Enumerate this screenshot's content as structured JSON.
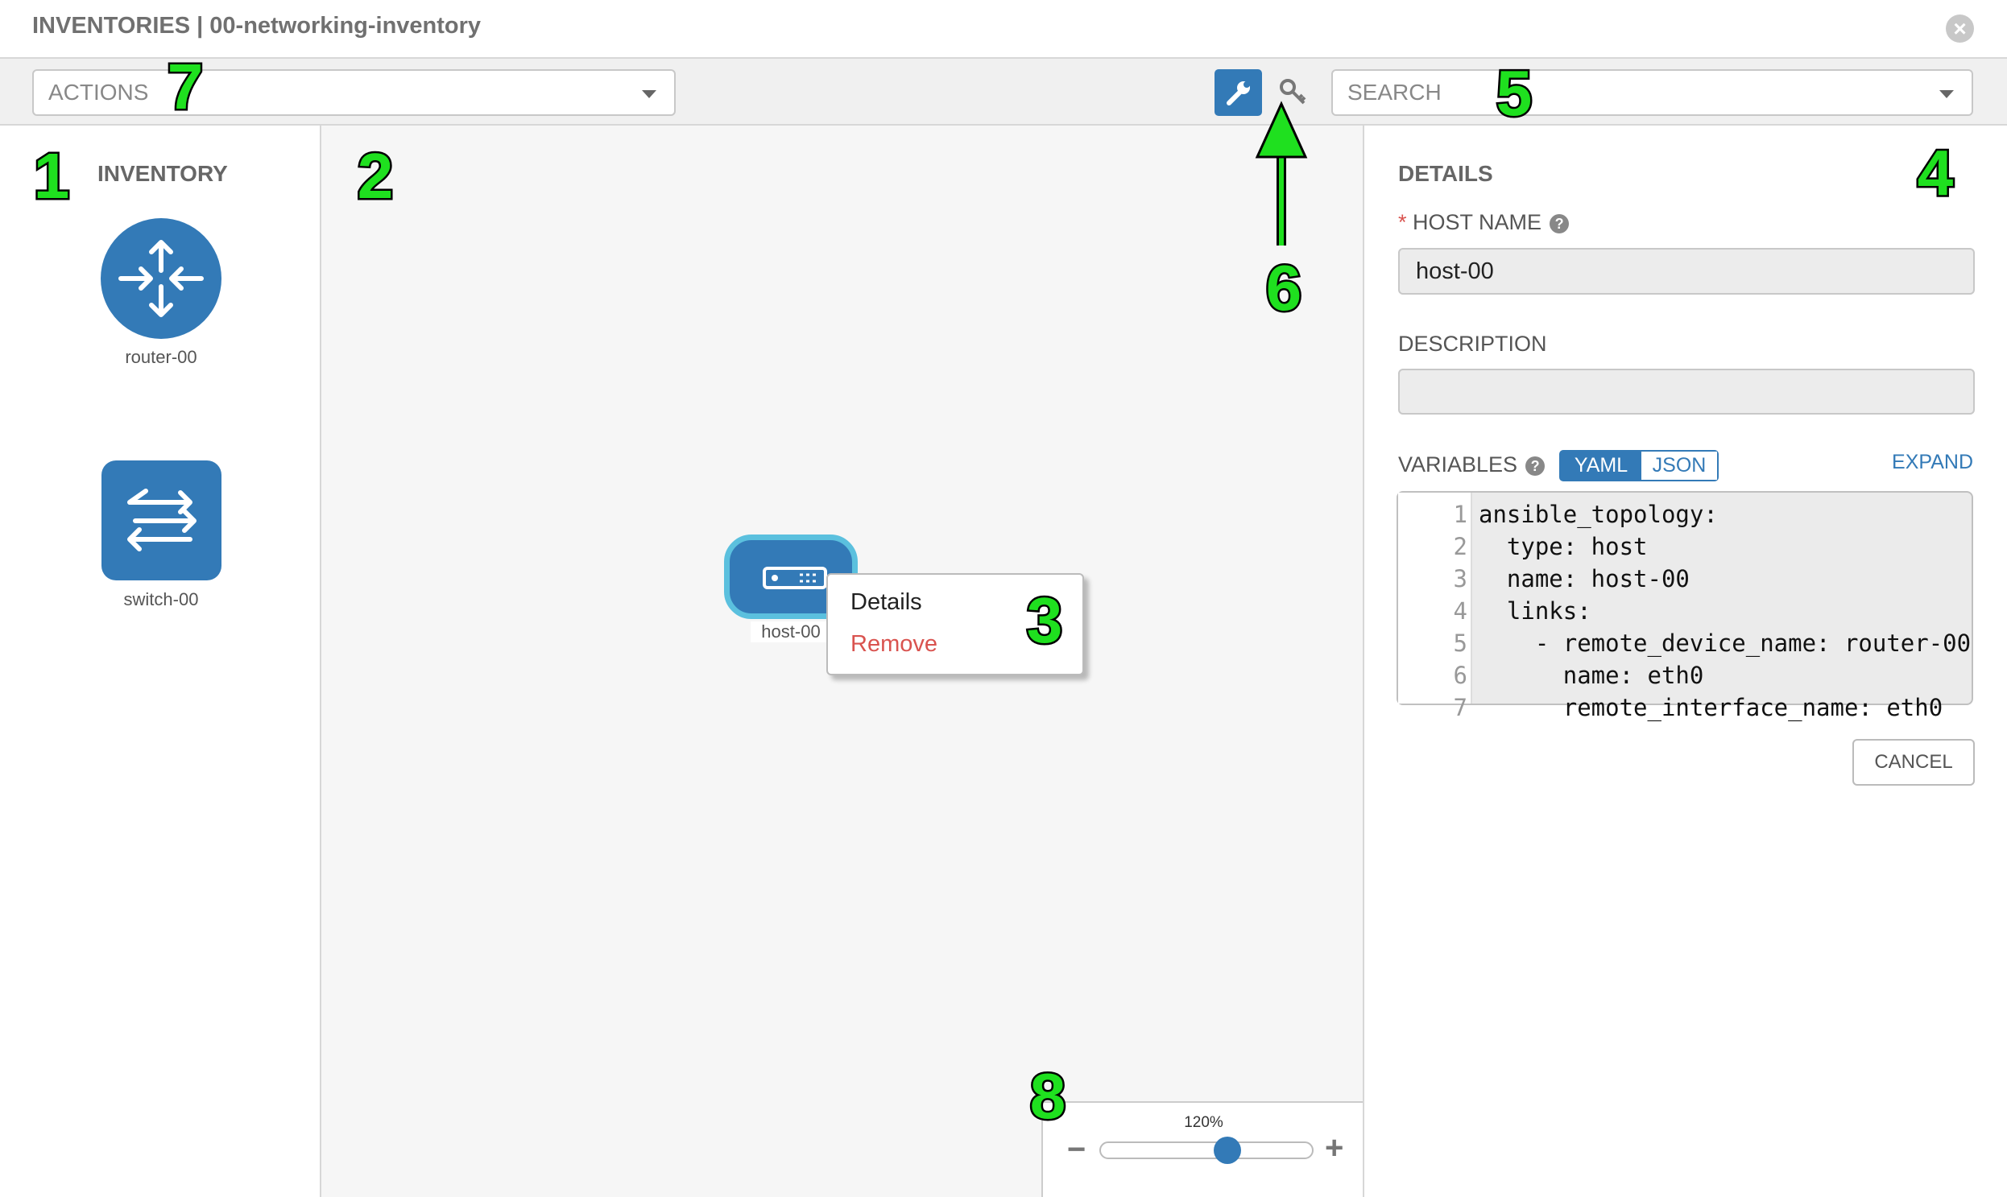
{
  "header": {
    "title": "INVENTORIES | 00-networking-inventory",
    "close_icon": "close-circle-icon"
  },
  "toolbar": {
    "actions_placeholder": "ACTIONS",
    "search_placeholder": "SEARCH",
    "wrench_icon": "wrench-icon",
    "key_icon": "key-icon"
  },
  "inventory": {
    "title": "INVENTORY",
    "items": [
      {
        "label": "router-00",
        "icon": "router-icon"
      },
      {
        "label": "switch-00",
        "icon": "switch-icon"
      }
    ]
  },
  "canvas": {
    "node": {
      "label": "host-00",
      "icon": "host-server-icon"
    },
    "context_menu": {
      "items": [
        "Details",
        "Remove"
      ]
    }
  },
  "details": {
    "title": "DETAILS",
    "host_name_label": "HOST NAME",
    "required_mark": "*",
    "host_name_value": "host-00",
    "description_label": "DESCRIPTION",
    "description_value": "",
    "variables_label": "VARIABLES",
    "toggle": {
      "yaml": "YAML",
      "json": "JSON",
      "selected": "YAML"
    },
    "expand": "EXPAND",
    "code_lines": [
      "ansible_topology:",
      "  type: host",
      "  name: host-00",
      "  links:",
      "    - remote_device_name: router-00",
      "      name: eth0",
      "      remote_interface_name: eth0"
    ],
    "cancel": "CANCEL"
  },
  "zoom": {
    "level_label": "120%",
    "minus": "−",
    "plus": "+",
    "value_percent": 120
  },
  "annotations": [
    "1",
    "2",
    "3",
    "4",
    "5",
    "6",
    "7",
    "8"
  ],
  "colors": {
    "primary": "#337ab7",
    "danger": "#d9534f",
    "annotation": "#1fe01f",
    "node_border": "#5bc0de"
  }
}
